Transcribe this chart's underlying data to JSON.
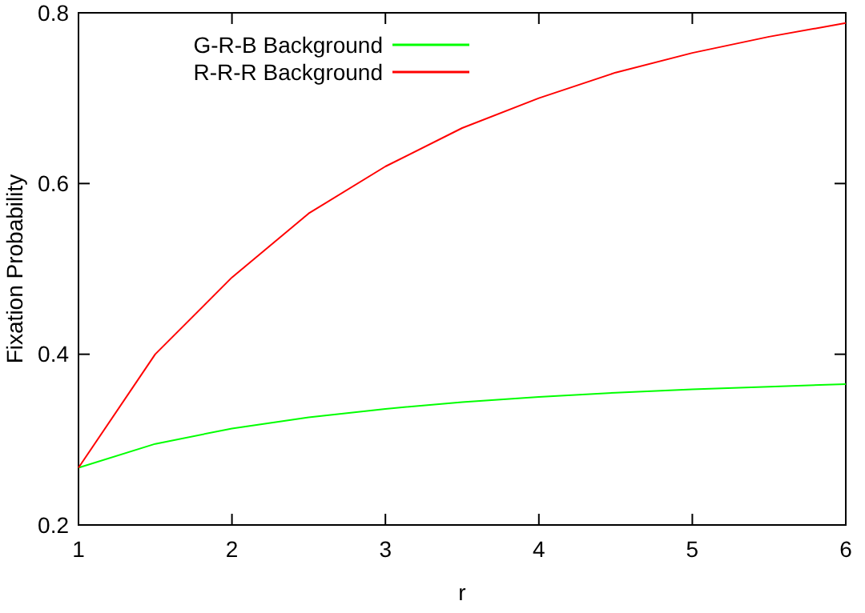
{
  "chart_data": {
    "type": "line",
    "xlabel": "r",
    "ylabel": "Fixation Probability",
    "x": [
      1,
      1.5,
      2,
      2.5,
      3,
      3.5,
      4,
      4.5,
      5,
      5.5,
      6
    ],
    "xlim": [
      1,
      6
    ],
    "xticks": [
      1,
      2,
      3,
      4,
      5,
      6
    ],
    "ylim": [
      0.2,
      0.8
    ],
    "yticks": [
      {
        "value": 0.2,
        "label": "0.2"
      },
      {
        "value": 0.4,
        "label": "0.4"
      },
      {
        "value": 0.6,
        "label": "0.6"
      },
      {
        "value": 0.8,
        "label": "0.8"
      }
    ],
    "grid": false,
    "legend": "top left",
    "marker": "none",
    "line_style": "solid",
    "series": [
      {
        "name": "G-R-B Background",
        "color": "#00ff00",
        "values": [
          0.267,
          0.295,
          0.313,
          0.326,
          0.336,
          0.344,
          0.35,
          0.355,
          0.359,
          0.362,
          0.365
        ]
      },
      {
        "name": "R-R-R Background",
        "color": "#ff0000",
        "values": [
          0.267,
          0.4,
          0.49,
          0.565,
          0.62,
          0.665,
          0.7,
          0.73,
          0.753,
          0.772,
          0.788
        ]
      }
    ]
  }
}
